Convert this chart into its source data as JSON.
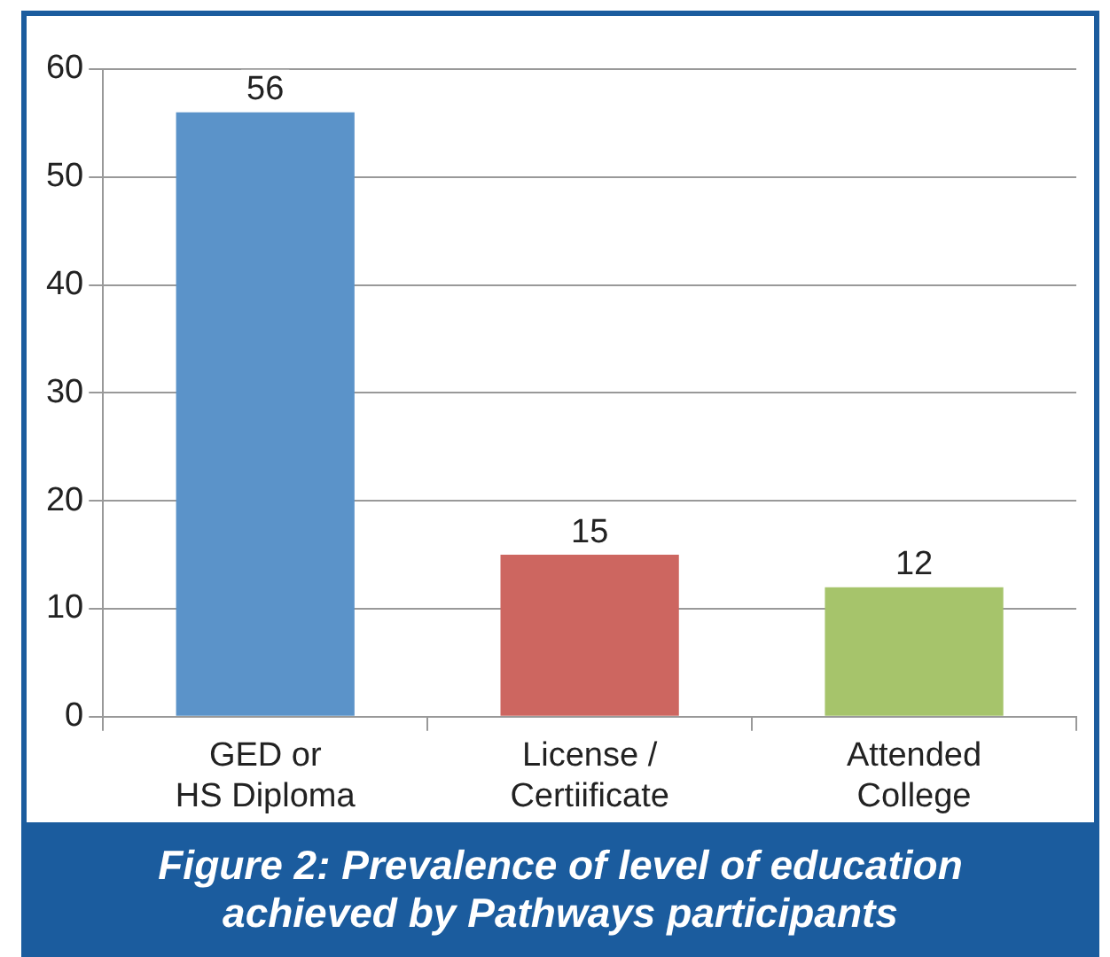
{
  "chart_data": {
    "type": "bar",
    "title": "Figure 2:  Prevalence of level of education\nachieved by Pathways participants",
    "categories": [
      "GED or\nHS Diploma",
      "License /\nCertiificate",
      "Attended\nCollege"
    ],
    "values": [
      56,
      15,
      12
    ],
    "colors": [
      "#5b93c9",
      "#cd6660",
      "#a6c46b"
    ],
    "ylim": [
      0,
      60
    ],
    "yticks": [
      0,
      10,
      20,
      30,
      40,
      50,
      60
    ],
    "grid": "y",
    "data_labels": true,
    "legend": false
  }
}
